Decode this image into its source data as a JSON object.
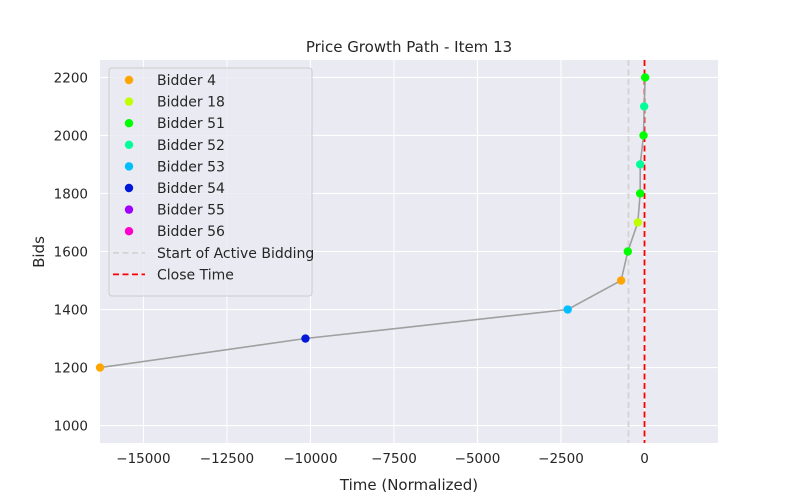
{
  "chart_data": {
    "type": "scatter",
    "title": "Price Growth Path - Item 13",
    "xlabel": "Time (Normalized)",
    "ylabel": "Bids",
    "xlim": [
      -16300,
      2200
    ],
    "ylim": [
      940,
      2260
    ],
    "x_ticks": [
      -15000,
      -12500,
      -10000,
      -7500,
      -5000,
      -2500,
      0
    ],
    "x_tick_labels": [
      "−15000",
      "−12500",
      "−10000",
      "−7500",
      "−5000",
      "−2500",
      "0"
    ],
    "y_ticks": [
      1000,
      1200,
      1400,
      1600,
      1800,
      2000,
      2200
    ],
    "y_tick_labels": [
      "1000",
      "1200",
      "1400",
      "1600",
      "1800",
      "2000",
      "2200"
    ],
    "grid": true,
    "background": "#eaeaf2",
    "path_color": "#a0a0a0",
    "legend_position": "upper-left",
    "bidders": [
      {
        "name": "Bidder 4",
        "color": "#ffa500"
      },
      {
        "name": "Bidder 18",
        "color": "#bfff00"
      },
      {
        "name": "Bidder 51",
        "color": "#00ff00"
      },
      {
        "name": "Bidder 52",
        "color": "#00ff99"
      },
      {
        "name": "Bidder 53",
        "color": "#00bfff"
      },
      {
        "name": "Bidder 54",
        "color": "#0018d8"
      },
      {
        "name": "Bidder 55",
        "color": "#9f00ff"
      },
      {
        "name": "Bidder 56",
        "color": "#ff00cc"
      }
    ],
    "points": [
      {
        "x": -16300,
        "y": 1200,
        "bidder": "Bidder 4"
      },
      {
        "x": -10150,
        "y": 1300,
        "bidder": "Bidder 54"
      },
      {
        "x": -2300,
        "y": 1400,
        "bidder": "Bidder 53"
      },
      {
        "x": -700,
        "y": 1500,
        "bidder": "Bidder 4"
      },
      {
        "x": -500,
        "y": 1600,
        "bidder": "Bidder 51"
      },
      {
        "x": -200,
        "y": 1700,
        "bidder": "Bidder 18"
      },
      {
        "x": -130,
        "y": 1800,
        "bidder": "Bidder 51"
      },
      {
        "x": -130,
        "y": 1900,
        "bidder": "Bidder 52"
      },
      {
        "x": -30,
        "y": 2000,
        "bidder": "Bidder 51"
      },
      {
        "x": -10,
        "y": 2100,
        "bidder": "Bidder 52"
      },
      {
        "x": 20,
        "y": 2200,
        "bidder": "Bidder 51"
      }
    ],
    "vlines": [
      {
        "name": "Start of Active Bidding",
        "x": -480,
        "color": "#d3d3d3",
        "style": "dashed"
      },
      {
        "name": "Close Time",
        "x": 0,
        "color": "#ff0000",
        "style": "dashed"
      }
    ]
  }
}
